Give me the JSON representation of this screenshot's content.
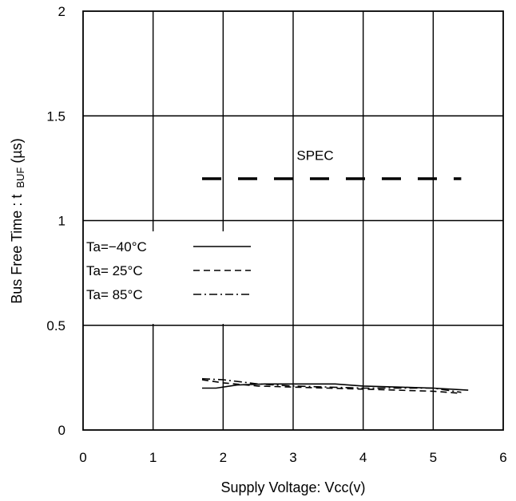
{
  "chart_data": {
    "type": "line",
    "xlabel": "Supply Voltage: Vcc(v)",
    "ylabel": "Bus Free Time : t",
    "ylabel_subscript": "BUF",
    "ylabel_unit": "(µs)",
    "xlim": [
      0,
      6
    ],
    "ylim": [
      0,
      2
    ],
    "xticks": [
      "0",
      "1",
      "2",
      "3",
      "4",
      "5",
      "6"
    ],
    "yticks": [
      "0",
      "0.5",
      "1",
      "1.5",
      "2"
    ],
    "grid": true,
    "legend_position": "left-middle",
    "annotation": {
      "text": "SPEC",
      "x": 3.05,
      "y": 1.29
    },
    "series": [
      {
        "name": "Ta=−40°C",
        "style": "solid",
        "x": [
          1.7,
          1.9,
          2.2,
          2.6,
          3.0,
          3.6,
          4.0,
          4.5,
          5.0,
          5.5
        ],
        "y": [
          0.2,
          0.2,
          0.215,
          0.22,
          0.22,
          0.22,
          0.21,
          0.205,
          0.2,
          0.19
        ]
      },
      {
        "name": "Ta= 25°C",
        "style": "dashed",
        "x": [
          1.7,
          2.0,
          2.5,
          3.0,
          3.5,
          4.0,
          4.5,
          5.0,
          5.4
        ],
        "y": [
          0.24,
          0.225,
          0.21,
          0.205,
          0.2,
          0.195,
          0.19,
          0.185,
          0.175
        ]
      },
      {
        "name": "Ta= 85°C",
        "style": "dashdot",
        "x": [
          1.7,
          2.0,
          2.5,
          3.0,
          3.5,
          4.0,
          4.5,
          5.0,
          5.4
        ],
        "y": [
          0.245,
          0.24,
          0.22,
          0.21,
          0.205,
          0.2,
          0.2,
          0.2,
          0.18
        ]
      },
      {
        "name": "SPEC",
        "style": "longdash",
        "x": [
          1.7,
          5.4
        ],
        "y": [
          1.2,
          1.2
        ]
      }
    ]
  }
}
